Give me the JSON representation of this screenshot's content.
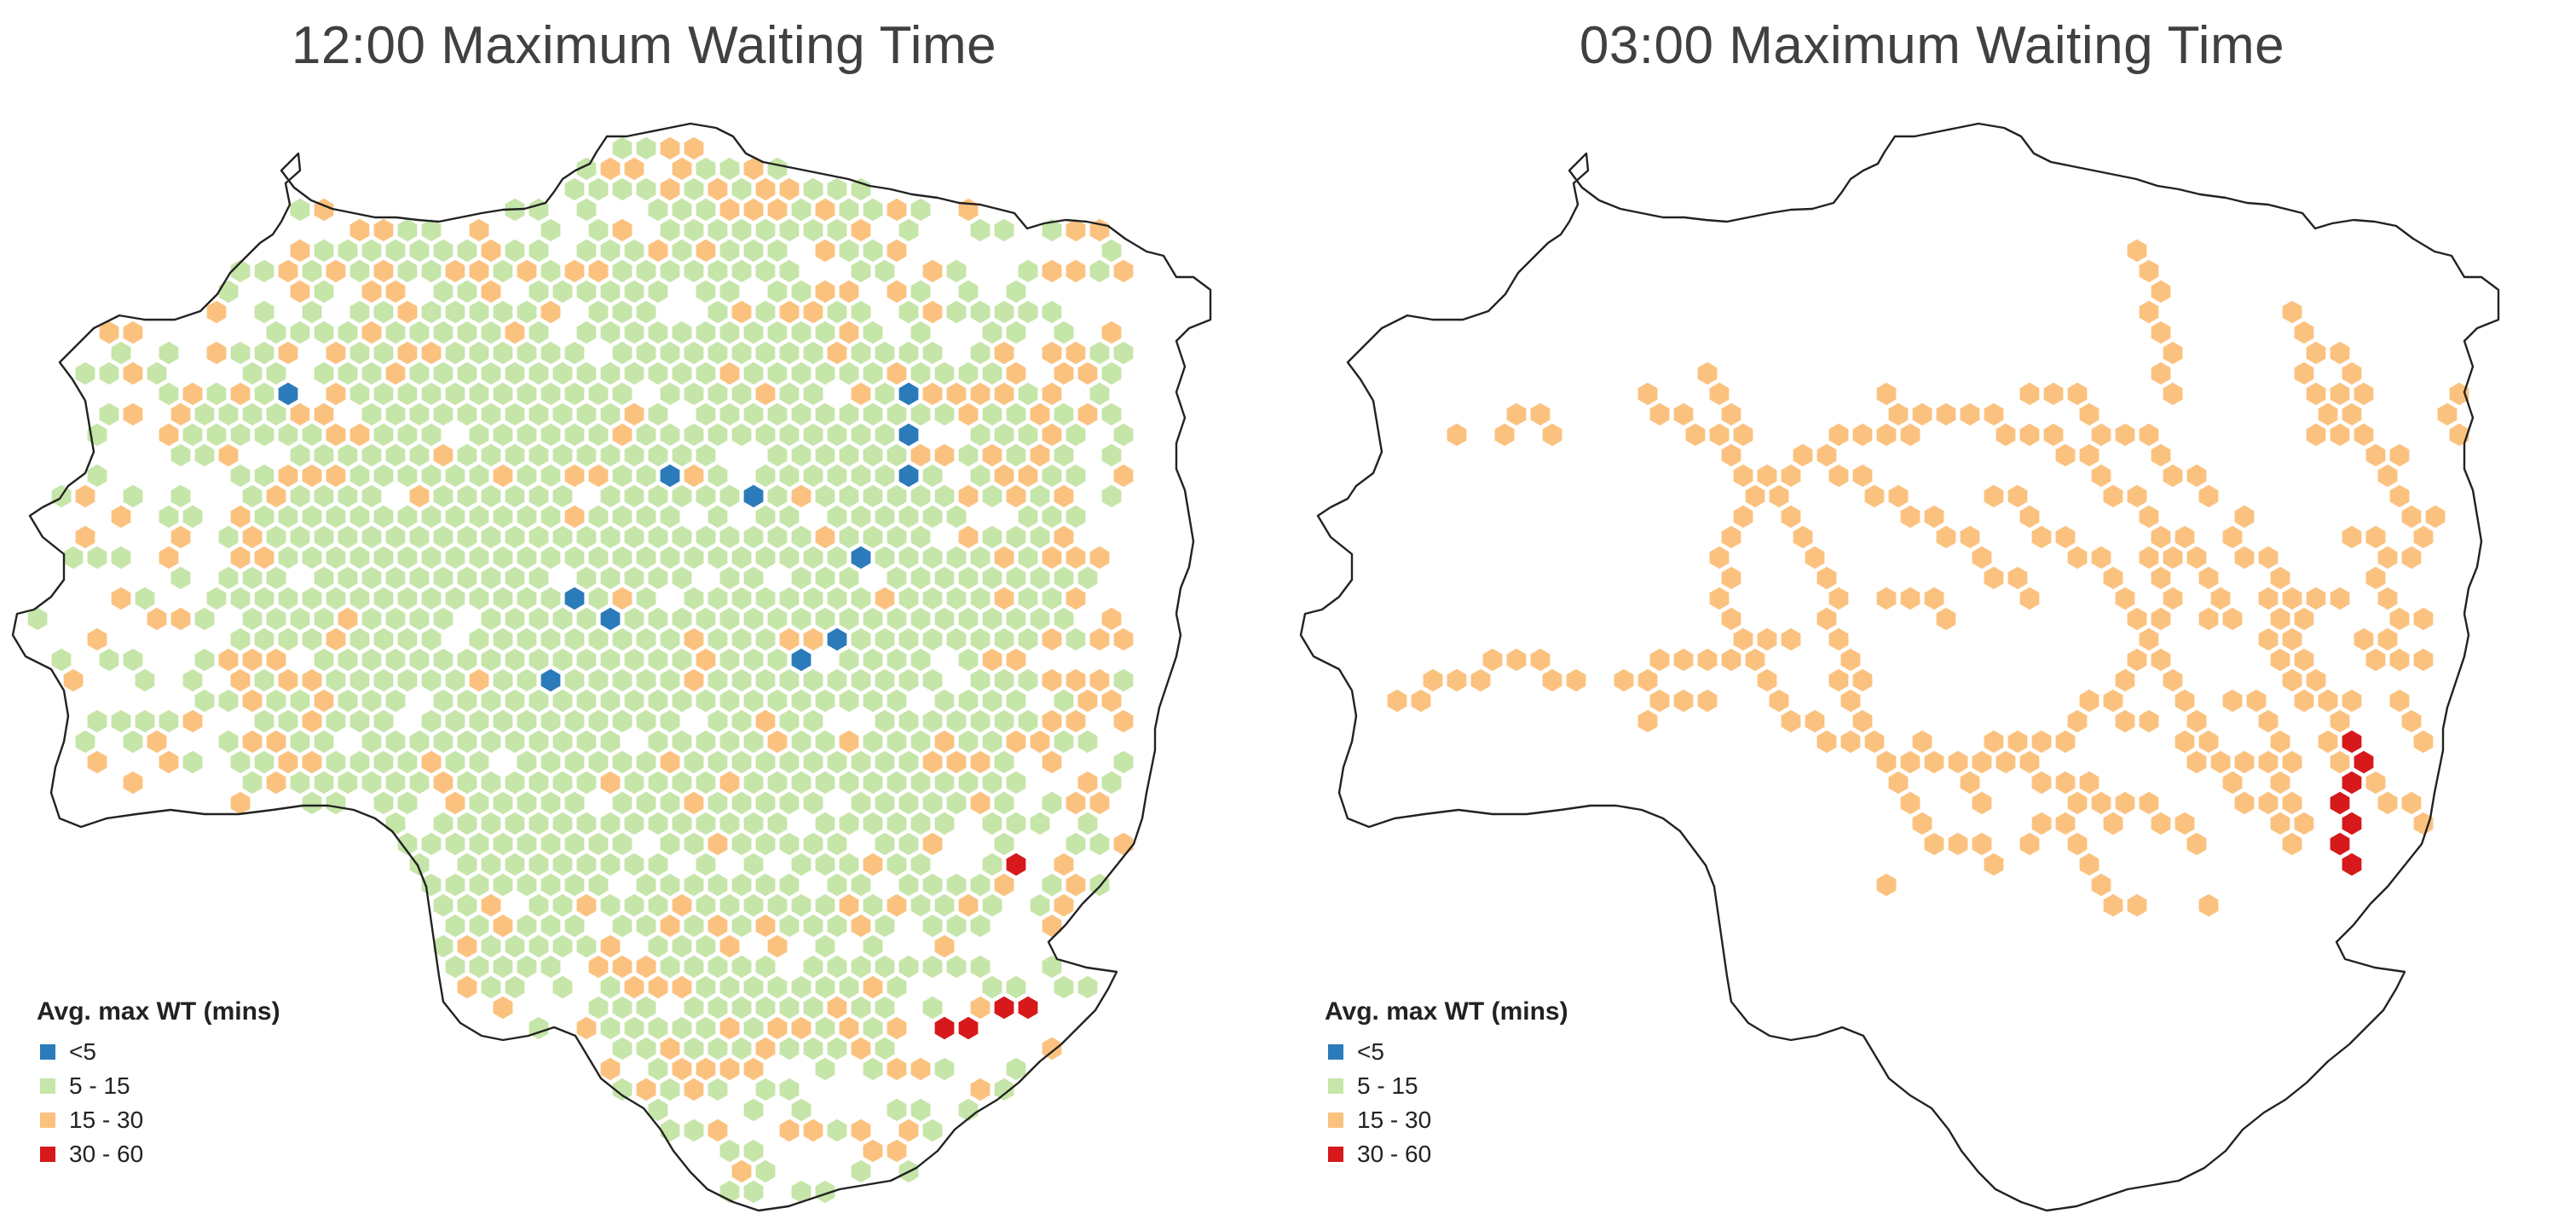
{
  "legend": {
    "title": "Avg. max WT (mins)",
    "classes": [
      {
        "label": "<5",
        "color": "#2b7bba"
      },
      {
        "label": "5 - 15",
        "color": "#c6e5a9"
      },
      {
        "label": "15 - 30",
        "color": "#fbc27f"
      },
      {
        "label": "30 - 60",
        "color": "#d7191c"
      }
    ]
  },
  "maps": [
    {
      "title": "12:00 Maximum Waiting Time",
      "boundary_color": "#222222"
    },
    {
      "title": "03:00 Maximum Waiting Time",
      "boundary_color": "#222222"
    }
  ]
}
